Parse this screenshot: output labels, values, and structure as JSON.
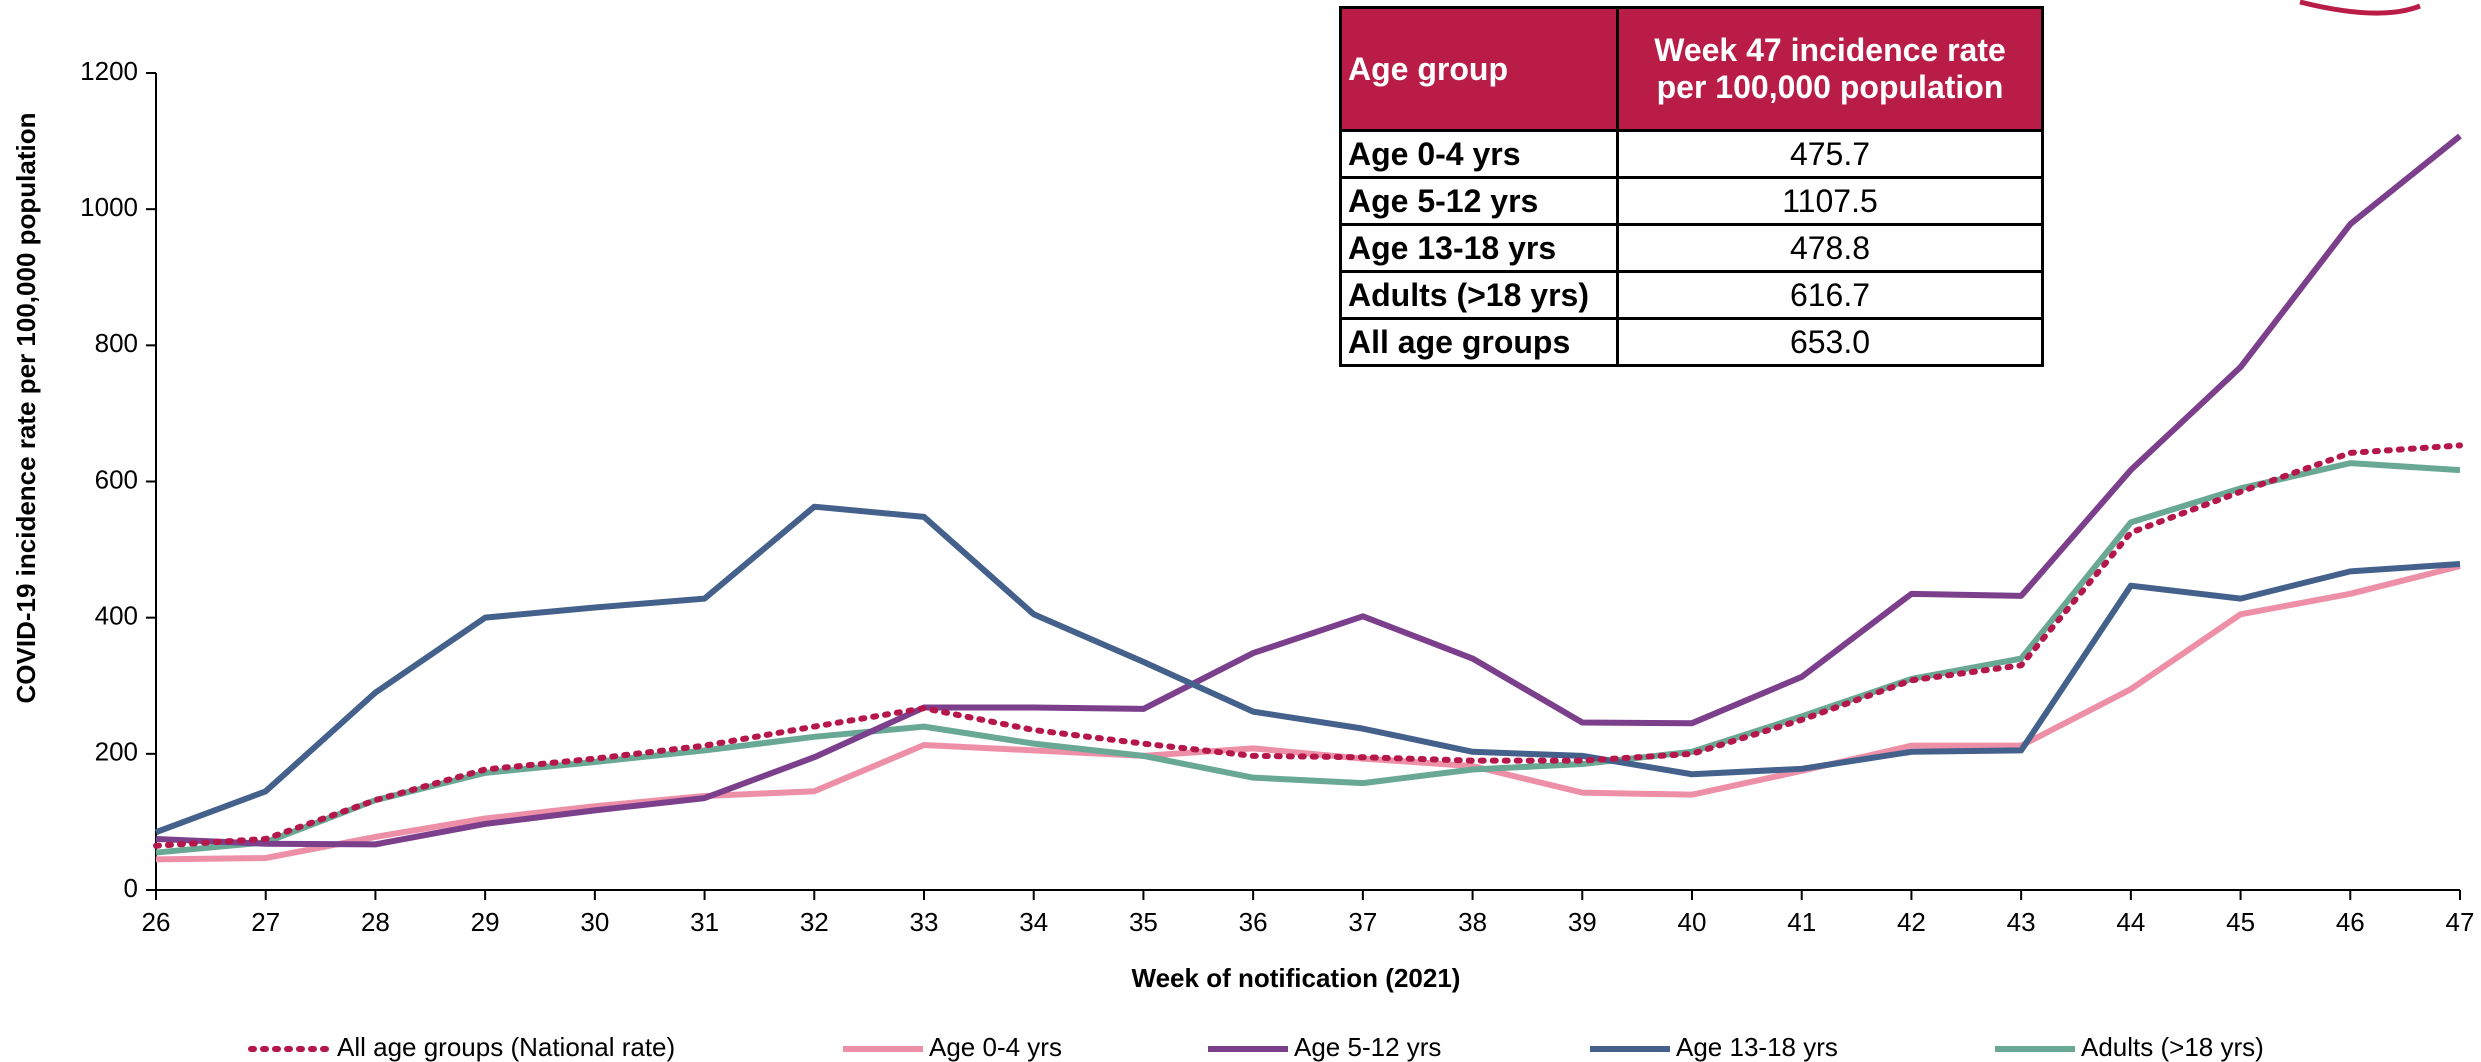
{
  "chart_data": {
    "type": "line",
    "x_label": "Week of notification (2021)",
    "y_label": "COVID-19 incidence rate per 100,000 population",
    "x": [
      26,
      27,
      28,
      29,
      30,
      31,
      32,
      33,
      34,
      35,
      36,
      37,
      38,
      39,
      40,
      41,
      42,
      43,
      44,
      45,
      46,
      47
    ],
    "xlim": [
      26,
      47
    ],
    "xticks": [
      26,
      27,
      28,
      29,
      30,
      31,
      32,
      33,
      34,
      35,
      36,
      37,
      38,
      39,
      40,
      41,
      42,
      43,
      44,
      45,
      46,
      47
    ],
    "ylim": [
      0,
      1200
    ],
    "yticks": [
      0,
      200,
      400,
      600,
      800,
      1000,
      1200
    ],
    "series": [
      {
        "name": "All age groups (National rate)",
        "color": "#b5174a",
        "line_style": "dotted",
        "values": [
          65,
          75,
          132,
          177,
          193,
          212,
          240,
          267,
          235,
          215,
          197,
          195,
          190,
          190,
          200,
          250,
          308,
          330,
          525,
          585,
          642,
          653
        ]
      },
      {
        "name": "Age 0-4 yrs",
        "color": "#ee8fa8",
        "line_style": "solid",
        "values": [
          45,
          47,
          78,
          105,
          123,
          138,
          145,
          213,
          205,
          197,
          208,
          193,
          182,
          143,
          140,
          175,
          212,
          212,
          295,
          405,
          435,
          475.7
        ]
      },
      {
        "name": "Age 5-12 yrs",
        "color": "#7b3f8c",
        "line_style": "solid",
        "values": [
          75,
          68,
          67,
          97,
          117,
          135,
          195,
          268,
          268,
          266,
          348,
          402,
          340,
          246,
          245,
          313,
          435,
          432,
          617,
          768,
          978,
          1107.5
        ]
      },
      {
        "name": "Age 13-18 yrs",
        "color": "#44618c",
        "line_style": "solid",
        "values": [
          85,
          145,
          290,
          400,
          415,
          428,
          563,
          548,
          405,
          335,
          262,
          237,
          203,
          197,
          170,
          178,
          203,
          205,
          447,
          428,
          468,
          478.8
        ]
      },
      {
        "name": "Adults (>18 yrs)",
        "color": "#6aa896",
        "line_style": "solid",
        "values": [
          55,
          70,
          132,
          172,
          188,
          205,
          225,
          240,
          215,
          197,
          165,
          157,
          177,
          185,
          203,
          255,
          310,
          340,
          540,
          590,
          627,
          616.7
        ]
      }
    ]
  },
  "table": {
    "header": [
      "Age group",
      "Week 47 incidence rate per 100,000 population"
    ],
    "rows": [
      [
        "Age 0-4 yrs",
        "475.7"
      ],
      [
        "Age 5-12 yrs",
        "1107.5"
      ],
      [
        "Age 13-18 yrs",
        "478.8"
      ],
      [
        "Adults (>18 yrs)",
        "616.7"
      ],
      [
        "All age groups",
        "653.0"
      ]
    ]
  }
}
